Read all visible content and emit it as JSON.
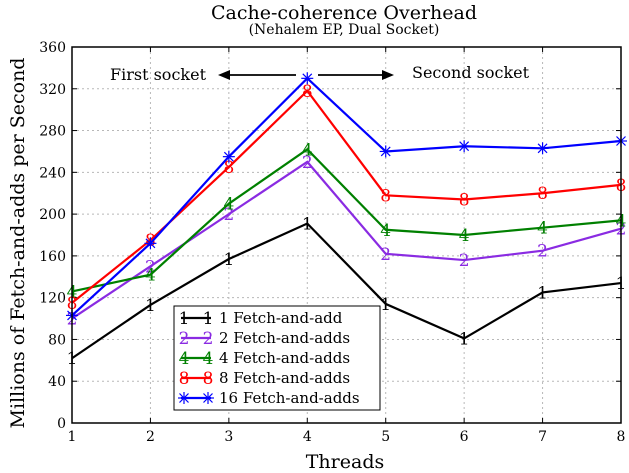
{
  "chart_data": {
    "type": "line",
    "title": "Cache-coherence  Overhead",
    "subtitle": "(Nehalem EP, Dual Socket)",
    "xlabel": "Threads",
    "ylabel": "Millions of Fetch-and-adds per Second",
    "x": [
      1,
      2,
      3,
      4,
      5,
      6,
      7,
      8
    ],
    "xlim": [
      1,
      8
    ],
    "ylim": [
      0,
      360
    ],
    "yticks": [
      0,
      40,
      80,
      120,
      160,
      200,
      240,
      280,
      320,
      360
    ],
    "grid": true,
    "legend_position": "bottom-left",
    "annotations": {
      "left": "First socket",
      "right": "Second socket"
    },
    "series": [
      {
        "name": "1 Fetch-and-add",
        "marker": "1",
        "color": "#000000",
        "values": [
          62,
          113,
          157,
          191,
          114,
          81,
          125,
          134
        ]
      },
      {
        "name": "2 Fetch-and-adds",
        "marker": "2",
        "color": "#8a2be2",
        "values": [
          100,
          150,
          200,
          250,
          162,
          156,
          165,
          186
        ]
      },
      {
        "name": "4 Fetch-and-adds",
        "marker": "4",
        "color": "#008000",
        "values": [
          126,
          142,
          210,
          262,
          185,
          180,
          187,
          194
        ]
      },
      {
        "name": "8 Fetch-and-adds",
        "marker": "8",
        "color": "#ff0000",
        "values": [
          115,
          175,
          245,
          318,
          218,
          214,
          220,
          228
        ]
      },
      {
        "name": "16 Fetch-and-adds",
        "marker": "*",
        "color": "#0000ff",
        "values": [
          103,
          172,
          255,
          330,
          260,
          265,
          263,
          270
        ]
      }
    ]
  }
}
